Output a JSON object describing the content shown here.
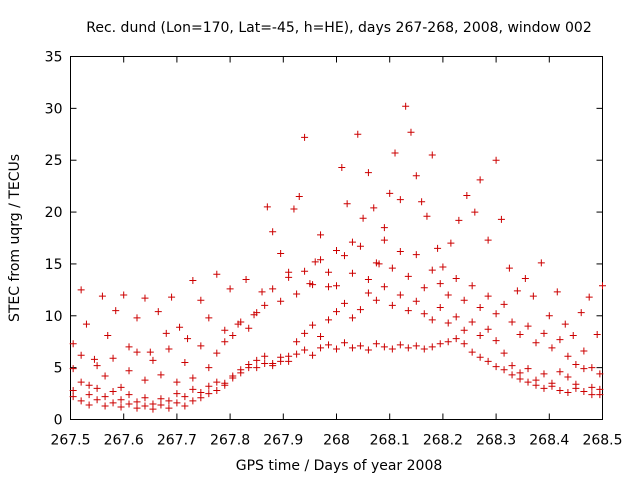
{
  "chart_data": {
    "type": "scatter",
    "title": "Rec. dund (Lon=170, Lat=-45, h=HE), days 267-268, 2008, window 002",
    "xlabel": "GPS time / Days of year 2008",
    "ylabel": "STEC from uqrg / TECUs",
    "xlim": [
      267.5,
      268.5
    ],
    "ylim": [
      0,
      35
    ],
    "x_ticks": [
      "267.5",
      "267.6",
      "267.7",
      "267.8",
      "267.9",
      "268",
      "268.1",
      "268.2",
      "268.3",
      "268.4",
      "268.5"
    ],
    "y_ticks": [
      "0",
      "5",
      "10",
      "15",
      "20",
      "25",
      "30",
      "35"
    ],
    "grid": false,
    "marker": "+",
    "marker_color": "#cc0000",
    "series": [
      {
        "points": [
          [
            267.505,
            7.3
          ],
          [
            267.52,
            12.5
          ],
          [
            267.53,
            9.2
          ],
          [
            267.545,
            5.8
          ],
          [
            267.56,
            11.9
          ],
          [
            267.57,
            8.1
          ],
          [
            267.585,
            10.5
          ],
          [
            267.6,
            12.0
          ],
          [
            267.61,
            7.0
          ],
          [
            267.625,
            9.8
          ],
          [
            267.64,
            11.7
          ],
          [
            267.65,
            6.5
          ],
          [
            267.665,
            10.4
          ],
          [
            267.68,
            8.3
          ],
          [
            267.69,
            11.8
          ],
          [
            267.705,
            8.9
          ],
          [
            267.72,
            7.8
          ],
          [
            267.73,
            13.4
          ],
          [
            267.745,
            11.5
          ],
          [
            267.76,
            9.8
          ],
          [
            267.775,
            14.0
          ],
          [
            267.79,
            8.6
          ],
          [
            267.8,
            12.6
          ],
          [
            267.815,
            9.2
          ],
          [
            267.83,
            13.5
          ],
          [
            267.845,
            10.1
          ],
          [
            267.86,
            12.3
          ],
          [
            267.87,
            20.5
          ],
          [
            267.88,
            18.1
          ],
          [
            267.895,
            16.0
          ],
          [
            267.91,
            14.2
          ],
          [
            267.92,
            20.3
          ],
          [
            267.93,
            21.5
          ],
          [
            267.94,
            27.2
          ],
          [
            267.95,
            13.1
          ],
          [
            267.96,
            15.2
          ],
          [
            267.97,
            17.8
          ],
          [
            267.985,
            12.8
          ],
          [
            268.0,
            16.3
          ],
          [
            268.01,
            24.3
          ],
          [
            268.02,
            20.8
          ],
          [
            268.03,
            17.1
          ],
          [
            268.04,
            27.5
          ],
          [
            268.05,
            19.4
          ],
          [
            268.06,
            23.8
          ],
          [
            268.07,
            20.4
          ],
          [
            268.08,
            15.0
          ],
          [
            268.09,
            18.5
          ],
          [
            268.1,
            21.8
          ],
          [
            268.11,
            25.7
          ],
          [
            268.12,
            21.2
          ],
          [
            268.13,
            30.2
          ],
          [
            268.14,
            27.7
          ],
          [
            268.15,
            23.5
          ],
          [
            268.16,
            21.0
          ],
          [
            268.17,
            19.6
          ],
          [
            268.18,
            25.5
          ],
          [
            268.19,
            16.5
          ],
          [
            268.2,
            14.7
          ],
          [
            268.215,
            17.0
          ],
          [
            268.23,
            19.2
          ],
          [
            268.245,
            21.6
          ],
          [
            268.26,
            20.0
          ],
          [
            268.27,
            23.1
          ],
          [
            268.285,
            17.3
          ],
          [
            268.3,
            25.0
          ],
          [
            268.31,
            19.3
          ],
          [
            268.325,
            14.6
          ],
          [
            268.34,
            12.4
          ],
          [
            268.355,
            13.6
          ],
          [
            268.37,
            11.9
          ],
          [
            268.385,
            15.1
          ],
          [
            268.4,
            10.0
          ],
          [
            268.415,
            12.3
          ],
          [
            268.43,
            9.2
          ],
          [
            268.445,
            8.1
          ],
          [
            268.46,
            10.3
          ],
          [
            268.475,
            11.8
          ],
          [
            268.49,
            8.2
          ],
          [
            268.5,
            12.9
          ]
        ]
      },
      {
        "points": [
          [
            267.505,
            4.9
          ],
          [
            267.52,
            6.2
          ],
          [
            267.535,
            3.3
          ],
          [
            267.55,
            5.2
          ],
          [
            267.565,
            4.2
          ],
          [
            267.58,
            5.9
          ],
          [
            267.595,
            3.1
          ],
          [
            267.61,
            4.7
          ],
          [
            267.625,
            6.5
          ],
          [
            267.64,
            3.8
          ],
          [
            267.655,
            5.7
          ],
          [
            267.67,
            4.3
          ],
          [
            267.685,
            6.8
          ],
          [
            267.7,
            3.6
          ],
          [
            267.715,
            5.5
          ],
          [
            267.73,
            4.0
          ],
          [
            267.745,
            7.1
          ],
          [
            267.76,
            5.0
          ],
          [
            267.775,
            6.4
          ],
          [
            267.79,
            7.5
          ],
          [
            267.805,
            8.1
          ],
          [
            267.82,
            9.4
          ],
          [
            267.835,
            8.8
          ],
          [
            267.85,
            10.3
          ],
          [
            267.865,
            11.0
          ],
          [
            267.88,
            12.6
          ],
          [
            267.895,
            11.4
          ],
          [
            267.91,
            13.7
          ],
          [
            267.925,
            12.1
          ],
          [
            267.94,
            14.3
          ],
          [
            267.955,
            13.0
          ],
          [
            267.97,
            15.4
          ],
          [
            267.985,
            14.2
          ],
          [
            268.0,
            12.9
          ],
          [
            268.015,
            15.8
          ],
          [
            268.03,
            14.1
          ],
          [
            268.045,
            16.7
          ],
          [
            268.06,
            13.5
          ],
          [
            268.075,
            15.1
          ],
          [
            268.09,
            17.3
          ],
          [
            268.105,
            14.6
          ],
          [
            268.12,
            16.2
          ],
          [
            268.135,
            13.8
          ],
          [
            268.15,
            15.9
          ],
          [
            268.165,
            12.7
          ],
          [
            268.18,
            14.4
          ],
          [
            268.195,
            13.1
          ],
          [
            268.21,
            12.0
          ],
          [
            268.225,
            13.6
          ],
          [
            268.24,
            11.5
          ],
          [
            268.255,
            12.9
          ],
          [
            268.27,
            10.8
          ],
          [
            268.285,
            11.9
          ],
          [
            268.3,
            10.2
          ],
          [
            268.315,
            11.1
          ],
          [
            268.33,
            9.4
          ],
          [
            268.345,
            8.2
          ],
          [
            268.36,
            9.0
          ],
          [
            268.375,
            7.4
          ],
          [
            268.39,
            8.3
          ],
          [
            268.405,
            6.9
          ],
          [
            268.42,
            7.7
          ],
          [
            268.435,
            6.1
          ],
          [
            268.45,
            5.3
          ],
          [
            268.465,
            6.6
          ],
          [
            268.48,
            5.0
          ],
          [
            268.495,
            4.4
          ]
        ]
      },
      {
        "points": [
          [
            267.505,
            2.8
          ],
          [
            267.52,
            3.6
          ],
          [
            267.535,
            2.4
          ],
          [
            267.55,
            3.0
          ],
          [
            267.565,
            2.2
          ],
          [
            267.58,
            2.7
          ],
          [
            267.595,
            1.9
          ],
          [
            267.61,
            2.4
          ],
          [
            267.625,
            1.7
          ],
          [
            267.64,
            2.1
          ],
          [
            267.655,
            1.5
          ],
          [
            267.67,
            2.0
          ],
          [
            267.685,
            1.8
          ],
          [
            267.7,
            2.5
          ],
          [
            267.715,
            2.2
          ],
          [
            267.73,
            2.9
          ],
          [
            267.745,
            2.6
          ],
          [
            267.76,
            3.2
          ],
          [
            267.775,
            3.6
          ],
          [
            267.79,
            3.3
          ],
          [
            267.805,
            4.0
          ],
          [
            267.82,
            4.5
          ],
          [
            267.835,
            5.0
          ],
          [
            267.85,
            5.7
          ],
          [
            267.865,
            6.1
          ],
          [
            267.88,
            5.4
          ],
          [
            267.895,
            6.0
          ],
          [
            267.91,
            5.6
          ],
          [
            267.925,
            6.3
          ],
          [
            267.94,
            6.7
          ],
          [
            267.955,
            6.2
          ],
          [
            267.97,
            6.9
          ],
          [
            267.985,
            7.2
          ],
          [
            268.0,
            6.8
          ],
          [
            268.015,
            7.4
          ],
          [
            268.03,
            6.9
          ],
          [
            268.045,
            7.1
          ],
          [
            268.06,
            6.7
          ],
          [
            268.075,
            7.3
          ],
          [
            268.09,
            7.0
          ],
          [
            268.105,
            6.8
          ],
          [
            268.12,
            7.2
          ],
          [
            268.135,
            6.9
          ],
          [
            268.15,
            7.1
          ],
          [
            268.165,
            6.8
          ],
          [
            268.18,
            7.0
          ],
          [
            268.195,
            7.3
          ],
          [
            268.21,
            7.5
          ],
          [
            268.225,
            7.8
          ],
          [
            268.24,
            7.3
          ],
          [
            268.255,
            6.5
          ],
          [
            268.27,
            6.0
          ],
          [
            268.285,
            5.6
          ],
          [
            268.3,
            5.1
          ],
          [
            268.315,
            4.8
          ],
          [
            268.33,
            4.3
          ],
          [
            268.345,
            3.9
          ],
          [
            268.36,
            3.6
          ],
          [
            268.375,
            3.3
          ],
          [
            268.39,
            3.0
          ],
          [
            268.405,
            3.2
          ],
          [
            268.42,
            2.8
          ],
          [
            268.435,
            2.6
          ],
          [
            268.45,
            3.0
          ],
          [
            268.465,
            2.7
          ],
          [
            268.48,
            2.4
          ],
          [
            268.495,
            2.9
          ]
        ]
      },
      {
        "points": [
          [
            267.505,
            2.2
          ],
          [
            267.52,
            1.8
          ],
          [
            267.535,
            1.4
          ],
          [
            267.55,
            1.9
          ],
          [
            267.565,
            1.3
          ],
          [
            267.58,
            1.6
          ],
          [
            267.595,
            1.2
          ],
          [
            267.61,
            1.5
          ],
          [
            267.625,
            1.1
          ],
          [
            267.64,
            1.3
          ],
          [
            267.655,
            1.0
          ],
          [
            267.67,
            1.4
          ],
          [
            267.685,
            1.1
          ],
          [
            267.7,
            1.6
          ],
          [
            267.715,
            1.3
          ],
          [
            267.73,
            1.8
          ],
          [
            267.745,
            2.1
          ],
          [
            267.76,
            2.5
          ],
          [
            267.775,
            2.8
          ],
          [
            267.79,
            3.5
          ],
          [
            267.805,
            4.2
          ],
          [
            267.82,
            4.8
          ],
          [
            267.835,
            5.3
          ],
          [
            267.85,
            5.0
          ],
          [
            267.865,
            5.4
          ],
          [
            267.88,
            5.2
          ],
          [
            267.895,
            5.6
          ],
          [
            267.91,
            6.1
          ],
          [
            267.925,
            7.5
          ],
          [
            267.94,
            8.3
          ],
          [
            267.955,
            9.1
          ],
          [
            267.97,
            8.0
          ],
          [
            267.985,
            9.6
          ],
          [
            268.0,
            10.4
          ],
          [
            268.015,
            11.2
          ],
          [
            268.03,
            9.8
          ],
          [
            268.045,
            10.6
          ],
          [
            268.06,
            12.2
          ],
          [
            268.075,
            11.5
          ],
          [
            268.09,
            12.8
          ],
          [
            268.105,
            11.0
          ],
          [
            268.12,
            12.0
          ],
          [
            268.135,
            10.5
          ],
          [
            268.15,
            11.4
          ],
          [
            268.165,
            10.2
          ],
          [
            268.18,
            9.6
          ],
          [
            268.195,
            10.8
          ],
          [
            268.21,
            9.3
          ],
          [
            268.225,
            9.9
          ],
          [
            268.24,
            8.6
          ],
          [
            268.255,
            9.4
          ],
          [
            268.27,
            8.1
          ],
          [
            268.285,
            8.7
          ],
          [
            268.3,
            7.6
          ],
          [
            268.315,
            6.4
          ],
          [
            268.33,
            5.2
          ],
          [
            268.345,
            4.5
          ],
          [
            268.36,
            4.9
          ],
          [
            268.375,
            3.8
          ],
          [
            268.39,
            4.4
          ],
          [
            268.405,
            3.5
          ],
          [
            268.42,
            4.6
          ],
          [
            268.435,
            4.1
          ],
          [
            268.45,
            3.4
          ],
          [
            268.465,
            4.9
          ],
          [
            268.48,
            3.1
          ],
          [
            268.495,
            2.4
          ]
        ]
      }
    ]
  }
}
